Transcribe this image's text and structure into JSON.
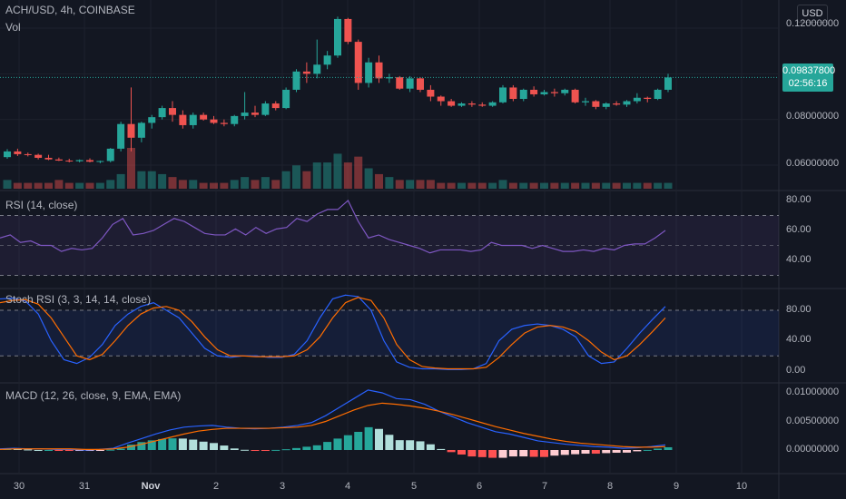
{
  "header": {
    "symbol": "ACH/USD, 4h, COINBASE",
    "volume_label": "Vol",
    "currency_button": "USD"
  },
  "price_axis": {
    "ticks": [
      "0.12000000",
      "0.08000000",
      "0.06000000"
    ],
    "last_price": "0.09837800",
    "countdown": "02:56:16"
  },
  "rsi": {
    "title": "RSI (14, close)",
    "ticks": [
      "80.00",
      "60.00",
      "40.00"
    ]
  },
  "stoch": {
    "title": "Stoch RSI (3, 3, 14, 14, close)",
    "ticks": [
      "80.00",
      "40.00",
      "0.00"
    ]
  },
  "macd": {
    "title": "MACD (12, 26, close, 9, EMA, EMA)",
    "ticks": [
      "0.01000000",
      "0.00500000",
      "0.00000000"
    ]
  },
  "dates": [
    "30",
    "31",
    "Nov",
    "2",
    "3",
    "4",
    "5",
    "6",
    "7",
    "8",
    "9",
    "10"
  ],
  "colors": {
    "up": "#26a69a",
    "down": "#ef5350",
    "rsi_line": "#7e57c2",
    "k_line": "#2962ff",
    "d_line": "#ff6d00"
  },
  "chart_data": {
    "type": "candlestick",
    "interval": "4h",
    "x_labels": [
      "30",
      "31",
      "Nov",
      "2",
      "3",
      "4",
      "5",
      "6",
      "7",
      "8",
      "9",
      "10"
    ],
    "ohlc": [
      [
        0.0635,
        0.067,
        0.0628,
        0.066
      ],
      [
        0.066,
        0.0672,
        0.064,
        0.0648
      ],
      [
        0.0648,
        0.0655,
        0.0638,
        0.0645
      ],
      [
        0.0645,
        0.065,
        0.0625,
        0.0632
      ],
      [
        0.0632,
        0.0645,
        0.0622,
        0.0625
      ],
      [
        0.0625,
        0.0633,
        0.0618,
        0.062
      ],
      [
        0.062,
        0.0628,
        0.0612,
        0.0617
      ],
      [
        0.0617,
        0.0625,
        0.0612,
        0.0622
      ],
      [
        0.0622,
        0.063,
        0.0612,
        0.0615
      ],
      [
        0.0615,
        0.062,
        0.0608,
        0.0618
      ],
      [
        0.0618,
        0.0675,
        0.0612,
        0.0672
      ],
      [
        0.0672,
        0.079,
        0.066,
        0.078
      ],
      [
        0.078,
        0.094,
        0.066,
        0.072
      ],
      [
        0.072,
        0.079,
        0.07,
        0.0785
      ],
      [
        0.0785,
        0.082,
        0.076,
        0.081
      ],
      [
        0.081,
        0.086,
        0.08,
        0.085
      ],
      [
        0.085,
        0.088,
        0.079,
        0.082
      ],
      [
        0.082,
        0.084,
        0.076,
        0.0775
      ],
      [
        0.0775,
        0.083,
        0.076,
        0.082
      ],
      [
        0.082,
        0.083,
        0.0795,
        0.08
      ],
      [
        0.08,
        0.0815,
        0.078,
        0.0785
      ],
      [
        0.0785,
        0.08,
        0.077,
        0.078
      ],
      [
        0.078,
        0.082,
        0.077,
        0.0815
      ],
      [
        0.0815,
        0.092,
        0.08,
        0.083
      ],
      [
        0.083,
        0.086,
        0.081,
        0.082
      ],
      [
        0.082,
        0.088,
        0.0815,
        0.087
      ],
      [
        0.087,
        0.088,
        0.084,
        0.085
      ],
      [
        0.085,
        0.094,
        0.0845,
        0.093
      ],
      [
        0.093,
        0.102,
        0.092,
        0.101
      ],
      [
        0.101,
        0.105,
        0.096,
        0.1
      ],
      [
        0.1,
        0.115,
        0.098,
        0.104
      ],
      [
        0.104,
        0.11,
        0.102,
        0.108
      ],
      [
        0.108,
        0.125,
        0.107,
        0.124
      ],
      [
        0.124,
        0.1245,
        0.113,
        0.114
      ],
      [
        0.114,
        0.115,
        0.093,
        0.096
      ],
      [
        0.096,
        0.107,
        0.094,
        0.105
      ],
      [
        0.105,
        0.108,
        0.096,
        0.098
      ],
      [
        0.098,
        0.1,
        0.096,
        0.0985
      ],
      [
        0.0985,
        0.099,
        0.093,
        0.0935
      ],
      [
        0.0935,
        0.099,
        0.092,
        0.098
      ],
      [
        0.098,
        0.0985,
        0.092,
        0.093
      ],
      [
        0.093,
        0.095,
        0.088,
        0.09
      ],
      [
        0.09,
        0.0905,
        0.086,
        0.088
      ],
      [
        0.088,
        0.089,
        0.0855,
        0.086
      ],
      [
        0.086,
        0.0875,
        0.0855,
        0.087
      ],
      [
        0.087,
        0.088,
        0.0855,
        0.0865
      ],
      [
        0.0865,
        0.0875,
        0.0855,
        0.086
      ],
      [
        0.086,
        0.088,
        0.0855,
        0.0875
      ],
      [
        0.0875,
        0.095,
        0.087,
        0.094
      ],
      [
        0.094,
        0.095,
        0.088,
        0.089
      ],
      [
        0.089,
        0.0935,
        0.088,
        0.093
      ],
      [
        0.093,
        0.0945,
        0.09,
        0.091
      ],
      [
        0.091,
        0.093,
        0.0905,
        0.092
      ],
      [
        0.092,
        0.0935,
        0.09,
        0.0915
      ],
      [
        0.0915,
        0.0935,
        0.0905,
        0.093
      ],
      [
        0.093,
        0.0935,
        0.087,
        0.0875
      ],
      [
        0.0875,
        0.0895,
        0.086,
        0.088
      ],
      [
        0.088,
        0.0885,
        0.0845,
        0.0855
      ],
      [
        0.0855,
        0.0875,
        0.0845,
        0.087
      ],
      [
        0.087,
        0.088,
        0.086,
        0.0865
      ],
      [
        0.0865,
        0.0885,
        0.0855,
        0.088
      ],
      [
        0.088,
        0.0915,
        0.087,
        0.0895
      ],
      [
        0.0895,
        0.09,
        0.0875,
        0.089
      ],
      [
        0.089,
        0.0935,
        0.0885,
        0.093
      ],
      [
        0.093,
        0.1,
        0.092,
        0.0984
      ]
    ],
    "volume": [
      3,
      2,
      2,
      2,
      2,
      3,
      2,
      2,
      2,
      2,
      3,
      5,
      14,
      6,
      6,
      5,
      4,
      3,
      3,
      2,
      2,
      2,
      3,
      4,
      3,
      4,
      3,
      6,
      8,
      6,
      9,
      9,
      12,
      9,
      11,
      7,
      5,
      4,
      3,
      3,
      3,
      3,
      2,
      2,
      2,
      2,
      2,
      2,
      3,
      2,
      2,
      2,
      2,
      2,
      2,
      2,
      2,
      2,
      2,
      2,
      2,
      2,
      2,
      2,
      2
    ],
    "rsi": [
      55,
      57,
      52,
      53,
      50,
      50,
      46,
      48,
      47,
      48,
      55,
      64,
      68,
      57,
      58,
      60,
      64,
      68,
      66,
      62,
      58,
      57,
      57,
      61,
      57,
      62,
      58,
      61,
      62,
      68,
      66,
      71,
      74,
      74,
      80,
      66,
      55,
      57,
      54,
      52,
      50,
      48,
      45,
      47,
      47,
      47,
      46,
      47,
      52,
      50,
      50,
      50,
      48,
      50,
      48,
      46,
      46,
      47,
      46,
      48,
      47,
      50,
      51,
      51,
      55,
      60
    ],
    "stoch_k": [
      95,
      96,
      92,
      75,
      40,
      15,
      10,
      18,
      35,
      60,
      75,
      85,
      90,
      80,
      70,
      50,
      30,
      20,
      18,
      20,
      20,
      18,
      18,
      22,
      40,
      70,
      95,
      100,
      98,
      80,
      40,
      12,
      5,
      3,
      3,
      2,
      2,
      3,
      10,
      40,
      55,
      60,
      62,
      60,
      55,
      45,
      20,
      10,
      12,
      30,
      50,
      68,
      85
    ],
    "stoch_d": [
      90,
      93,
      94,
      88,
      70,
      45,
      20,
      15,
      22,
      40,
      60,
      75,
      83,
      85,
      80,
      65,
      45,
      28,
      20,
      20,
      19,
      19,
      19,
      20,
      28,
      45,
      70,
      90,
      97,
      93,
      70,
      35,
      15,
      6,
      4,
      3,
      3,
      3,
      5,
      18,
      35,
      50,
      58,
      60,
      58,
      52,
      40,
      25,
      15,
      20,
      35,
      52,
      70
    ],
    "macd": [
      0.0002,
      0.0003,
      0.0002,
      0.0002,
      0.0001,
      0.0001,
      0.0,
      0.0001,
      0.0003,
      0.0012,
      0.002,
      0.0028,
      0.0035,
      0.004,
      0.0042,
      0.0043,
      0.004,
      0.0038,
      0.0037,
      0.0038,
      0.004,
      0.0043,
      0.0048,
      0.006,
      0.0075,
      0.009,
      0.0105,
      0.01,
      0.009,
      0.0088,
      0.008,
      0.0068,
      0.0058,
      0.0048,
      0.004,
      0.0032,
      0.0028,
      0.0022,
      0.0016,
      0.0013,
      0.001,
      0.0008,
      0.0006,
      0.0005,
      0.0003,
      0.0004,
      0.0006,
      0.0009
    ],
    "signal": [
      0.0001,
      0.0002,
      0.0002,
      0.0002,
      0.0002,
      0.0002,
      0.0001,
      0.0001,
      0.0002,
      0.0005,
      0.001,
      0.0016,
      0.0022,
      0.0028,
      0.0033,
      0.0036,
      0.0038,
      0.0038,
      0.0038,
      0.0038,
      0.0039,
      0.004,
      0.0043,
      0.005,
      0.006,
      0.007,
      0.0078,
      0.0082,
      0.008,
      0.0077,
      0.0073,
      0.0068,
      0.0062,
      0.0055,
      0.0048,
      0.0041,
      0.0035,
      0.0029,
      0.0024,
      0.0019,
      0.0015,
      0.0012,
      0.001,
      0.0008,
      0.0006,
      0.0005,
      0.0005,
      0.0006
    ]
  }
}
